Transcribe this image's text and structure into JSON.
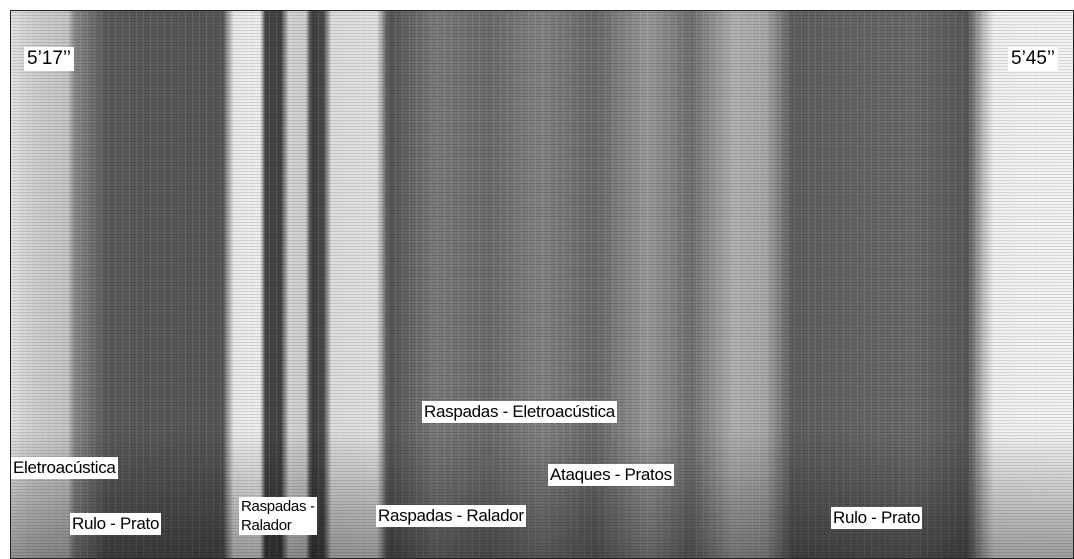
{
  "figure": {
    "start_time": "5’17’’",
    "end_time": "5’45’’",
    "annotations": [
      {
        "lines": [
          "Eletroacústica"
        ]
      },
      {
        "lines": [
          "Rulo - Prato"
        ]
      },
      {
        "lines": [
          "Raspadas -",
          "Ralador"
        ]
      },
      {
        "lines": [
          "Raspadas - Ralador"
        ]
      },
      {
        "lines": [
          "Raspadas - Eletroacústica"
        ]
      },
      {
        "lines": [
          "Ataques - Pratos"
        ]
      },
      {
        "lines": [
          "Rulo - Prato"
        ]
      }
    ]
  }
}
